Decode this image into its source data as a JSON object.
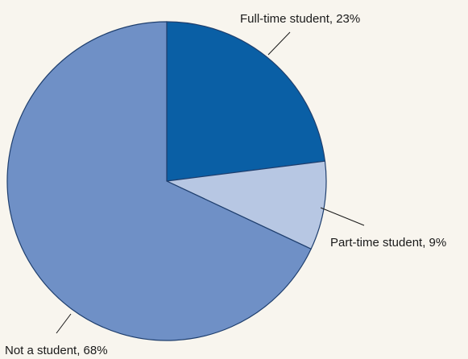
{
  "chart_data": {
    "type": "pie",
    "values": [
      23,
      9,
      68
    ],
    "value_labels": [
      "Full-time student, 23%",
      "Part-time student, 9%",
      "Not a student, 68%"
    ],
    "colors": [
      "#0a5fa5",
      "#b7c7e3",
      "#6f90c6"
    ]
  }
}
